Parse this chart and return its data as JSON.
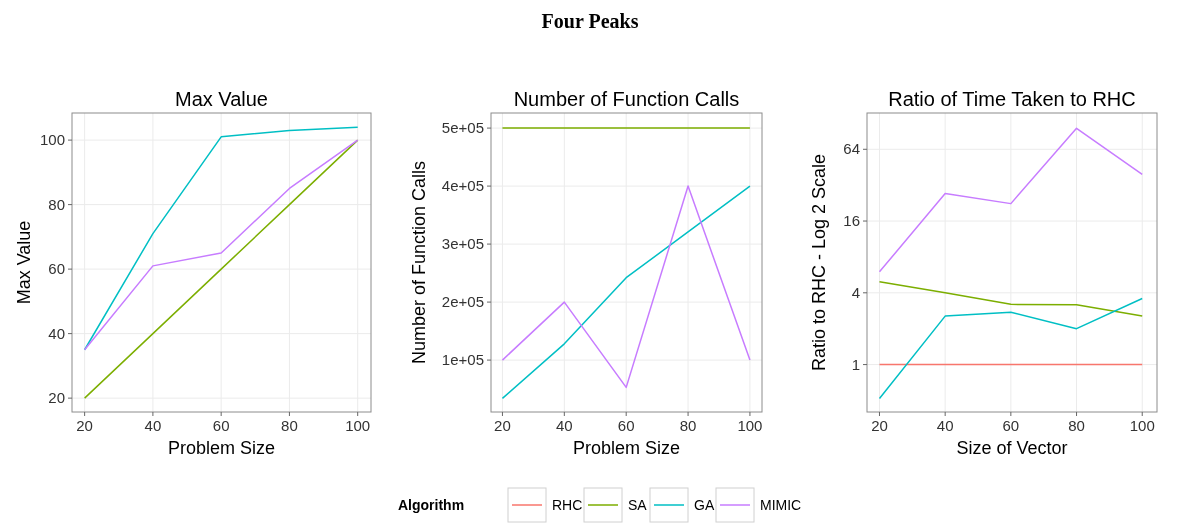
{
  "chart_data": [
    {
      "type": "line",
      "annotations": [
        "Four Peaks"
      ],
      "title": "Max Value",
      "xlabel": "Problem Size",
      "ylabel": "Max Value",
      "x": [
        20,
        40,
        60,
        80,
        100
      ],
      "xlim": [
        16.3,
        103.9
      ],
      "xticks": [
        20,
        40,
        60,
        80,
        100
      ],
      "ylim": [
        15.7,
        108.4
      ],
      "yticks": [
        20,
        40,
        60,
        80,
        100
      ],
      "grid": true,
      "series": [
        {
          "color": "#7cae00",
          "values": [
            20,
            40,
            60,
            80,
            100
          ]
        },
        {
          "color": "#00bfc4",
          "values": [
            35,
            71,
            101,
            103,
            104
          ]
        },
        {
          "color": "#c77cff",
          "values": [
            35,
            61,
            65,
            85,
            100
          ]
        }
      ]
    },
    {
      "type": "line",
      "title": "Number of Function Calls",
      "xlabel": "Problem Size",
      "ylabel": "Number of Function Calls",
      "x": [
        20,
        40,
        60,
        80,
        100
      ],
      "xlim": [
        16.3,
        103.9
      ],
      "xticks": [
        20,
        40,
        60,
        80,
        100
      ],
      "ylim": [
        10500,
        526000
      ],
      "yticks": [
        {
          "value": 100000,
          "label": "1e+05"
        },
        {
          "value": 200000,
          "label": "2e+05"
        },
        {
          "value": 300000,
          "label": "3e+05"
        },
        {
          "value": 400000,
          "label": "4e+05"
        },
        {
          "value": 500000,
          "label": "5e+05"
        }
      ],
      "grid": true,
      "series": [
        {
          "color": "#7cae00",
          "values": [
            500000,
            500000,
            500000,
            500000,
            500000
          ]
        },
        {
          "color": "#00bfc4",
          "values": [
            34000,
            128000,
            242000,
            321000,
            400000
          ]
        },
        {
          "color": "#c77cff",
          "values": [
            100000,
            200000,
            53000,
            400000,
            100000
          ]
        }
      ]
    },
    {
      "type": "line",
      "title": "Ratio of Time Taken to RHC",
      "xlabel": "Size of Vector",
      "ylabel": "Ratio to RHC - Log 2 Scale",
      "x": [
        20,
        40,
        60,
        80,
        100
      ],
      "xlim": [
        16.2,
        104.5
      ],
      "xticks": [
        20,
        40,
        60,
        80,
        100
      ],
      "ylim": [
        0.4,
        129
      ],
      "yticks": [
        1,
        4,
        16,
        64
      ],
      "log": "y",
      "grid": true,
      "legend": "bottom",
      "legend_title": "Algorithm",
      "series": [
        {
          "name": "RHC",
          "color": "#f8766d",
          "values": [
            1,
            1,
            1,
            1,
            1
          ]
        },
        {
          "name": "SA",
          "color": "#7cae00",
          "values": [
            4.95,
            4,
            3.2,
            3.18,
            2.56
          ]
        },
        {
          "name": "GA",
          "color": "#00bfc4",
          "values": [
            0.52,
            2.55,
            2.75,
            2,
            3.58
          ]
        },
        {
          "name": "MIMIC",
          "color": "#c77cff",
          "values": [
            6,
            27.2,
            22.4,
            96,
            39.5
          ]
        }
      ]
    }
  ]
}
